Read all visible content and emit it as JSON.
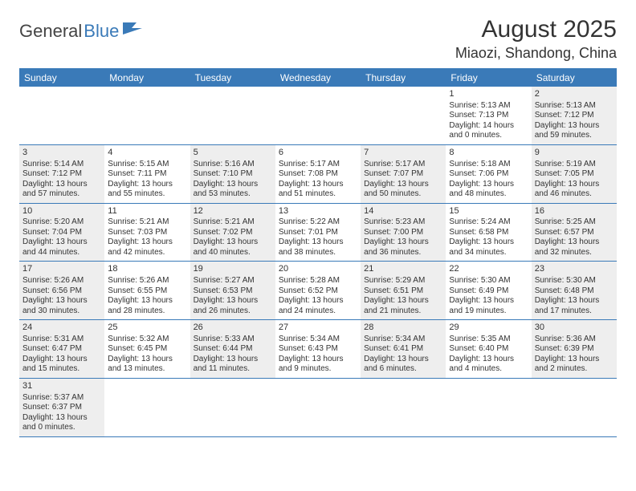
{
  "logo": {
    "text_general": "General",
    "text_blue": "Blue",
    "flag_color": "#3a7ab8"
  },
  "title": "August 2025",
  "location": "Miaozi, Shandong, China",
  "colors": {
    "header_bg": "#3a7ab8",
    "header_text": "#ffffff",
    "border": "#3a7ab8",
    "shaded_bg": "#eeeeee",
    "text": "#333333"
  },
  "weekdays": [
    "Sunday",
    "Monday",
    "Tuesday",
    "Wednesday",
    "Thursday",
    "Friday",
    "Saturday"
  ],
  "weeks": [
    [
      null,
      null,
      null,
      null,
      null,
      {
        "n": "1",
        "sr": "Sunrise: 5:13 AM",
        "ss": "Sunset: 7:13 PM",
        "d1": "Daylight: 14 hours",
        "d2": "and 0 minutes."
      },
      {
        "n": "2",
        "sr": "Sunrise: 5:13 AM",
        "ss": "Sunset: 7:12 PM",
        "d1": "Daylight: 13 hours",
        "d2": "and 59 minutes."
      }
    ],
    [
      {
        "n": "3",
        "sr": "Sunrise: 5:14 AM",
        "ss": "Sunset: 7:12 PM",
        "d1": "Daylight: 13 hours",
        "d2": "and 57 minutes."
      },
      {
        "n": "4",
        "sr": "Sunrise: 5:15 AM",
        "ss": "Sunset: 7:11 PM",
        "d1": "Daylight: 13 hours",
        "d2": "and 55 minutes."
      },
      {
        "n": "5",
        "sr": "Sunrise: 5:16 AM",
        "ss": "Sunset: 7:10 PM",
        "d1": "Daylight: 13 hours",
        "d2": "and 53 minutes."
      },
      {
        "n": "6",
        "sr": "Sunrise: 5:17 AM",
        "ss": "Sunset: 7:08 PM",
        "d1": "Daylight: 13 hours",
        "d2": "and 51 minutes."
      },
      {
        "n": "7",
        "sr": "Sunrise: 5:17 AM",
        "ss": "Sunset: 7:07 PM",
        "d1": "Daylight: 13 hours",
        "d2": "and 50 minutes."
      },
      {
        "n": "8",
        "sr": "Sunrise: 5:18 AM",
        "ss": "Sunset: 7:06 PM",
        "d1": "Daylight: 13 hours",
        "d2": "and 48 minutes."
      },
      {
        "n": "9",
        "sr": "Sunrise: 5:19 AM",
        "ss": "Sunset: 7:05 PM",
        "d1": "Daylight: 13 hours",
        "d2": "and 46 minutes."
      }
    ],
    [
      {
        "n": "10",
        "sr": "Sunrise: 5:20 AM",
        "ss": "Sunset: 7:04 PM",
        "d1": "Daylight: 13 hours",
        "d2": "and 44 minutes."
      },
      {
        "n": "11",
        "sr": "Sunrise: 5:21 AM",
        "ss": "Sunset: 7:03 PM",
        "d1": "Daylight: 13 hours",
        "d2": "and 42 minutes."
      },
      {
        "n": "12",
        "sr": "Sunrise: 5:21 AM",
        "ss": "Sunset: 7:02 PM",
        "d1": "Daylight: 13 hours",
        "d2": "and 40 minutes."
      },
      {
        "n": "13",
        "sr": "Sunrise: 5:22 AM",
        "ss": "Sunset: 7:01 PM",
        "d1": "Daylight: 13 hours",
        "d2": "and 38 minutes."
      },
      {
        "n": "14",
        "sr": "Sunrise: 5:23 AM",
        "ss": "Sunset: 7:00 PM",
        "d1": "Daylight: 13 hours",
        "d2": "and 36 minutes."
      },
      {
        "n": "15",
        "sr": "Sunrise: 5:24 AM",
        "ss": "Sunset: 6:58 PM",
        "d1": "Daylight: 13 hours",
        "d2": "and 34 minutes."
      },
      {
        "n": "16",
        "sr": "Sunrise: 5:25 AM",
        "ss": "Sunset: 6:57 PM",
        "d1": "Daylight: 13 hours",
        "d2": "and 32 minutes."
      }
    ],
    [
      {
        "n": "17",
        "sr": "Sunrise: 5:26 AM",
        "ss": "Sunset: 6:56 PM",
        "d1": "Daylight: 13 hours",
        "d2": "and 30 minutes."
      },
      {
        "n": "18",
        "sr": "Sunrise: 5:26 AM",
        "ss": "Sunset: 6:55 PM",
        "d1": "Daylight: 13 hours",
        "d2": "and 28 minutes."
      },
      {
        "n": "19",
        "sr": "Sunrise: 5:27 AM",
        "ss": "Sunset: 6:53 PM",
        "d1": "Daylight: 13 hours",
        "d2": "and 26 minutes."
      },
      {
        "n": "20",
        "sr": "Sunrise: 5:28 AM",
        "ss": "Sunset: 6:52 PM",
        "d1": "Daylight: 13 hours",
        "d2": "and 24 minutes."
      },
      {
        "n": "21",
        "sr": "Sunrise: 5:29 AM",
        "ss": "Sunset: 6:51 PM",
        "d1": "Daylight: 13 hours",
        "d2": "and 21 minutes."
      },
      {
        "n": "22",
        "sr": "Sunrise: 5:30 AM",
        "ss": "Sunset: 6:49 PM",
        "d1": "Daylight: 13 hours",
        "d2": "and 19 minutes."
      },
      {
        "n": "23",
        "sr": "Sunrise: 5:30 AM",
        "ss": "Sunset: 6:48 PM",
        "d1": "Daylight: 13 hours",
        "d2": "and 17 minutes."
      }
    ],
    [
      {
        "n": "24",
        "sr": "Sunrise: 5:31 AM",
        "ss": "Sunset: 6:47 PM",
        "d1": "Daylight: 13 hours",
        "d2": "and 15 minutes."
      },
      {
        "n": "25",
        "sr": "Sunrise: 5:32 AM",
        "ss": "Sunset: 6:45 PM",
        "d1": "Daylight: 13 hours",
        "d2": "and 13 minutes."
      },
      {
        "n": "26",
        "sr": "Sunrise: 5:33 AM",
        "ss": "Sunset: 6:44 PM",
        "d1": "Daylight: 13 hours",
        "d2": "and 11 minutes."
      },
      {
        "n": "27",
        "sr": "Sunrise: 5:34 AM",
        "ss": "Sunset: 6:43 PM",
        "d1": "Daylight: 13 hours",
        "d2": "and 9 minutes."
      },
      {
        "n": "28",
        "sr": "Sunrise: 5:34 AM",
        "ss": "Sunset: 6:41 PM",
        "d1": "Daylight: 13 hours",
        "d2": "and 6 minutes."
      },
      {
        "n": "29",
        "sr": "Sunrise: 5:35 AM",
        "ss": "Sunset: 6:40 PM",
        "d1": "Daylight: 13 hours",
        "d2": "and 4 minutes."
      },
      {
        "n": "30",
        "sr": "Sunrise: 5:36 AM",
        "ss": "Sunset: 6:39 PM",
        "d1": "Daylight: 13 hours",
        "d2": "and 2 minutes."
      }
    ],
    [
      {
        "n": "31",
        "sr": "Sunrise: 5:37 AM",
        "ss": "Sunset: 6:37 PM",
        "d1": "Daylight: 13 hours",
        "d2": "and 0 minutes."
      },
      null,
      null,
      null,
      null,
      null,
      null
    ]
  ]
}
